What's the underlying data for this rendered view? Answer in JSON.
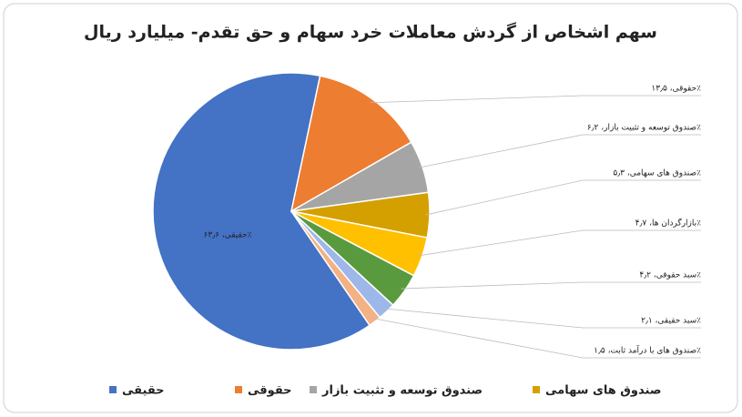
{
  "chart_data": {
    "type": "pie",
    "title": "سهم اشخاص از گردش معاملات خرد سهام و حق تقدم- میلیارد ریال",
    "categories": [
      "حقیقی",
      "حقوقی",
      "صندوق توسعه و تثبیت بازار",
      "صندوق های سهامی",
      "بازارگردان ها",
      "سبد حقوقی",
      "سبد حقیقی",
      "صندوق های با درآمد ثابت"
    ],
    "values": [
      63.6,
      13.5,
      6.2,
      5.3,
      4.7,
      4.2,
      2.1,
      1.5
    ],
    "value_labels": [
      "حقیقی، ۶۳٫۶٪",
      "حقوقی، ۱۳٫۵٪",
      "صندوق توسعه و تثبیت بازار، ۶٫۲٪",
      "صندوق های سهامی، ۵٫۳٪",
      "بازارگردان ها، ۴٫۷٪",
      "سبد حقوقی، ۴٫۲٪",
      "سبد حقیقی، ۲٫۱٪",
      "صندوق های با درآمد ثابت، ۱٫۵٪"
    ],
    "colors": [
      "#4472c4",
      "#ed7d31",
      "#a5a5a5",
      "#d4a000",
      "#ffc000",
      "#5a9a3e",
      "#9db7e8",
      "#f4b183"
    ],
    "legend": [
      "حقیقی",
      "حقوقی",
      "صندوق توسعه و تثبیت بازار",
      "صندوق های سهامی"
    ]
  }
}
